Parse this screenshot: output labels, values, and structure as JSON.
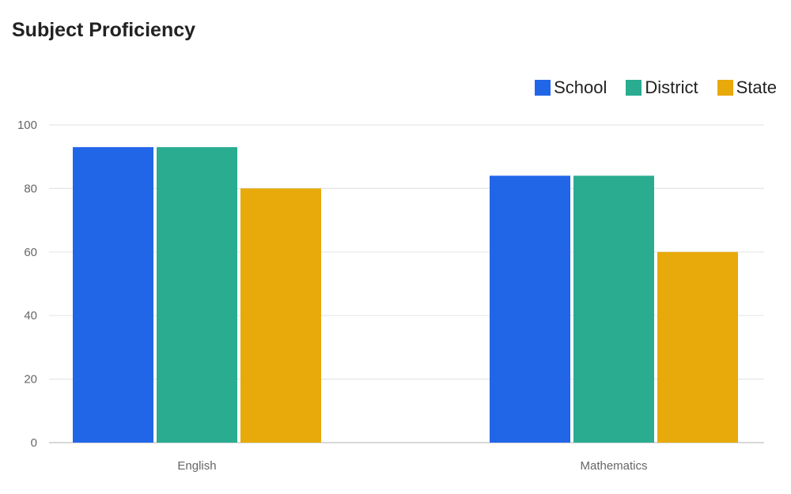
{
  "chart_data": {
    "type": "bar",
    "title": "Subject Proficiency",
    "categories": [
      "English",
      "Mathematics"
    ],
    "series": [
      {
        "name": "School",
        "color": "#2266e8",
        "values": [
          93,
          84
        ]
      },
      {
        "name": "District",
        "color": "#29ac90",
        "values": [
          93,
          84
        ]
      },
      {
        "name": "State",
        "color": "#e8a90b",
        "values": [
          80,
          60
        ]
      }
    ],
    "y_ticks": [
      "0",
      "20",
      "40",
      "60",
      "80",
      "100"
    ],
    "ylim": [
      0,
      100
    ],
    "grid": true,
    "legend_position": "top-right"
  }
}
